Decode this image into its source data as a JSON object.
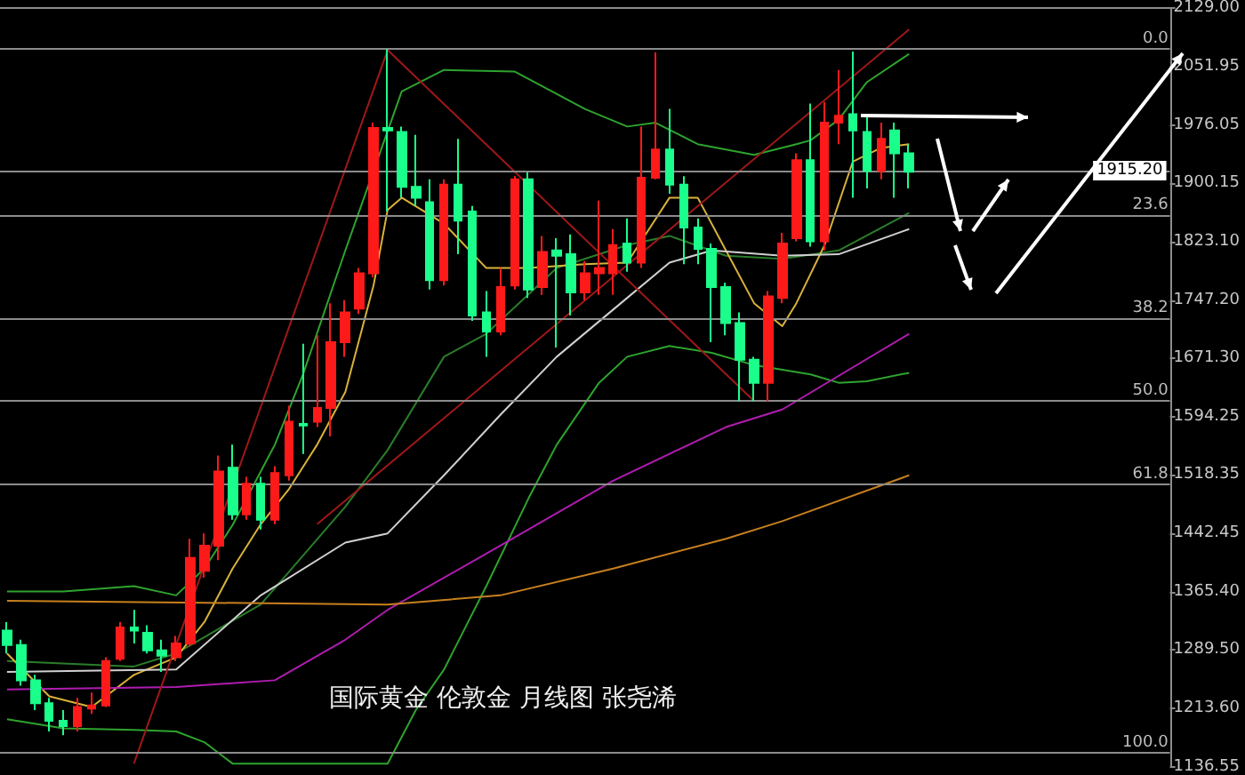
{
  "chart_data": {
    "type": "candlestick",
    "annotations": [
      "国际黄金 伦敦金 月线图 张尧浠",
      {
        "text": "0.0",
        "y": 2075
      },
      {
        "text": "23.6",
        "y": 1858
      },
      {
        "text": "38.2",
        "y": 1724
      },
      {
        "text": "50.0",
        "y": 1615
      },
      {
        "text": "61.8",
        "y": 1506
      },
      {
        "text": "100.0",
        "y": 1155
      }
    ],
    "categories": [
      null,
      null,
      null,
      null,
      null,
      null,
      null,
      null,
      null,
      null,
      null,
      null,
      null,
      null,
      null,
      null,
      null,
      null,
      null,
      null,
      null,
      null,
      null,
      null,
      null,
      null,
      null,
      null,
      null,
      null,
      null,
      null,
      null,
      null,
      null,
      null,
      null,
      null,
      null,
      null,
      null,
      null,
      null,
      null,
      null,
      null,
      null,
      null,
      null,
      null,
      null,
      null,
      null,
      null,
      null,
      null,
      null,
      null,
      null,
      null,
      null,
      null,
      null,
      null,
      null,
      null,
      null,
      null,
      null,
      null,
      null,
      null,
      null,
      null,
      null,
      null,
      null,
      null,
      null,
      null,
      null,
      null,
      null
    ],
    "ohlc": [
      [
        1315,
        1326,
        1285,
        1296
      ],
      [
        1296,
        1303,
        1243,
        1250
      ],
      [
        1250,
        1257,
        1211,
        1220
      ],
      [
        1220,
        1227,
        1183,
        1197
      ],
      [
        1197,
        1211,
        1178,
        1190
      ],
      [
        1190,
        1227,
        1183,
        1215
      ],
      [
        1213,
        1234,
        1206,
        1217
      ],
      [
        1217,
        1280,
        1215,
        1275
      ],
      [
        1278,
        1326,
        1275,
        1319
      ],
      [
        1319,
        1342,
        1298,
        1315
      ],
      [
        1312,
        1322,
        1285,
        1289
      ],
      [
        1289,
        1303,
        1261,
        1282
      ],
      [
        1280,
        1308,
        1275,
        1298
      ],
      [
        1298,
        1435,
        1294,
        1410
      ],
      [
        1393,
        1442,
        1384,
        1426
      ],
      [
        1426,
        1544,
        1407,
        1523
      ],
      [
        1528,
        1558,
        1460,
        1467
      ],
      [
        1467,
        1516,
        1460,
        1507
      ],
      [
        1507,
        1516,
        1447,
        1460
      ],
      [
        1460,
        1530,
        1454,
        1521
      ],
      [
        1518,
        1609,
        1511,
        1588
      ],
      [
        1585,
        1690,
        1546,
        1583
      ],
      [
        1588,
        1701,
        1581,
        1606
      ],
      [
        1606,
        1743,
        1569,
        1692
      ],
      [
        1692,
        1747,
        1673,
        1731
      ],
      [
        1736,
        1789,
        1729,
        1782
      ],
      [
        1782,
        1979,
        1777,
        1972
      ],
      [
        1972,
        2075,
        1863,
        1969
      ],
      [
        1967,
        1974,
        1881,
        1895
      ],
      [
        1895,
        1963,
        1870,
        1881
      ],
      [
        1875,
        1905,
        1761,
        1773
      ],
      [
        1773,
        1905,
        1766,
        1898
      ],
      [
        1898,
        1958,
        1807,
        1851
      ],
      [
        1863,
        1870,
        1720,
        1727
      ],
      [
        1731,
        1759,
        1673,
        1706
      ],
      [
        1706,
        1789,
        1701,
        1764
      ],
      [
        1766,
        1909,
        1761,
        1905
      ],
      [
        1905,
        1914,
        1750,
        1761
      ],
      [
        1764,
        1831,
        1754,
        1810
      ],
      [
        1812,
        1828,
        1685,
        1805
      ],
      [
        1807,
        1833,
        1727,
        1757
      ],
      [
        1757,
        1798,
        1747,
        1782
      ],
      [
        1782,
        1877,
        1754,
        1789
      ],
      [
        1782,
        1840,
        1754,
        1819
      ],
      [
        1821,
        1854,
        1784,
        1796
      ],
      [
        1796,
        1974,
        1789,
        1907
      ],
      [
        1907,
        2071,
        1905,
        1944
      ],
      [
        1944,
        1997,
        1886,
        1898
      ],
      [
        1898,
        1909,
        1794,
        1842
      ],
      [
        1842,
        1854,
        1794,
        1814
      ],
      [
        1814,
        1821,
        1692,
        1764
      ],
      [
        1764,
        1770,
        1701,
        1717
      ],
      [
        1717,
        1731,
        1615,
        1669
      ],
      [
        1669,
        1673,
        1615,
        1639
      ],
      [
        1639,
        1759,
        1615,
        1752
      ],
      [
        1750,
        1835,
        1743,
        1821
      ],
      [
        1828,
        1939,
        1824,
        1930
      ],
      [
        1930,
        2004,
        1817,
        1824
      ],
      [
        1824,
        2006,
        1812,
        1979
      ],
      [
        1979,
        2048,
        1951,
        1988
      ],
      [
        1990,
        2072,
        1881,
        1969
      ],
      [
        1967,
        1986,
        1893,
        1916
      ],
      [
        1916,
        1979,
        1905,
        1958
      ],
      [
        1969,
        1979,
        1881,
        1939
      ],
      [
        1939,
        1951,
        1893,
        1915
      ],
      null,
      null,
      null,
      null,
      null,
      null,
      null,
      null,
      null,
      null,
      null,
      null,
      null,
      null,
      null,
      null,
      null,
      null
    ],
    "marker": "none",
    "series": [
      {
        "type": "line",
        "color": "#2ea32e",
        "values": [
          1366,
          null,
          null,
          null,
          1366,
          null,
          null,
          null,
          null,
          1373,
          null,
          null,
          1361,
          null,
          1396,
          null,
          1453,
          null,
          null,
          1558,
          null,
          1650,
          null,
          null,
          1812,
          null,
          null,
          null,
          2020,
          null,
          null,
          2048,
          null,
          null,
          null,
          null,
          2046,
          null,
          null,
          null,
          null,
          1997,
          null,
          null,
          1974,
          null,
          1979,
          null,
          null,
          1951,
          null,
          null,
          null,
          1937,
          null,
          null,
          1951,
          1956,
          null,
          1983,
          null,
          2032,
          null,
          null,
          2069,
          null,
          null,
          null,
          null,
          null,
          null,
          null,
          null,
          null,
          null,
          null,
          null,
          null,
          null,
          null,
          null,
          null,
          null
        ]
      },
      {
        "type": "line",
        "color": "#2ea32e",
        "values": [
          1199,
          null,
          null,
          null,
          1187,
          null,
          null,
          null,
          null,
          1185,
          null,
          null,
          1183,
          null,
          1169,
          null,
          1141,
          null,
          null,
          null,
          null,
          null,
          null,
          null,
          null,
          null,
          null,
          1141,
          null,
          1211,
          null,
          1264,
          null,
          null,
          1373,
          null,
          null,
          1488,
          null,
          1558,
          null,
          null,
          1639,
          null,
          1673,
          null,
          null,
          1687,
          null,
          null,
          1678,
          null,
          null,
          1662,
          null,
          null,
          null,
          1650,
          null,
          1639,
          null,
          1641,
          null,
          null,
          1652,
          null,
          null,
          null,
          null,
          null,
          null,
          null,
          null,
          null,
          null,
          null,
          null,
          null,
          null,
          null,
          null,
          null,
          null
        ]
      },
      {
        "type": "line",
        "color": "#2a7d2a",
        "values": [
          1275,
          null,
          null,
          null,
          null,
          null,
          null,
          null,
          null,
          1268,
          null,
          null,
          1285,
          null,
          null,
          null,
          null,
          null,
          1349,
          null,
          null,
          null,
          null,
          null,
          1477,
          null,
          null,
          1551,
          null,
          null,
          null,
          1673,
          null,
          null,
          1703,
          null,
          null,
          null,
          null,
          1789,
          null,
          null,
          null,
          null,
          1819,
          null,
          null,
          1831,
          null,
          null,
          null,
          1805,
          null,
          null,
          null,
          1801,
          null,
          null,
          null,
          1812,
          null,
          null,
          null,
          null,
          1861,
          null,
          null,
          null,
          null,
          null,
          null,
          null,
          null,
          null,
          null,
          null,
          null,
          null,
          null,
          null,
          null,
          null,
          null
        ]
      },
      {
        "type": "line",
        "color": "#d9b23a",
        "values": [
          1285,
          null,
          null,
          1229,
          null,
          null,
          1215,
          null,
          null,
          1257,
          null,
          null,
          1280,
          null,
          1326,
          null,
          1396,
          null,
          1454,
          null,
          1500,
          null,
          1558,
          null,
          1627,
          null,
          1766,
          1865,
          1881,
          null,
          null,
          1847,
          null,
          null,
          1789,
          null,
          null,
          1789,
          null,
          null,
          null,
          1794,
          null,
          null,
          1796,
          null,
          null,
          1881,
          null,
          1881,
          null,
          1812,
          null,
          1743,
          null,
          1713,
          1743,
          null,
          1819,
          null,
          1928,
          null,
          1946,
          null,
          1951,
          null,
          null,
          null,
          null,
          null,
          null,
          null,
          null,
          null,
          null,
          null,
          null,
          null,
          null,
          null,
          null,
          null,
          null
        ]
      },
      {
        "type": "line",
        "color": "#d0d0d0",
        "values": [
          1261,
          null,
          null,
          null,
          null,
          null,
          null,
          null,
          null,
          null,
          null,
          null,
          1264,
          null,
          null,
          null,
          null,
          null,
          1361,
          null,
          null,
          null,
          null,
          null,
          1430,
          null,
          null,
          1442,
          null,
          null,
          null,
          1518,
          null,
          null,
          null,
          1597,
          null,
          null,
          null,
          1673,
          null,
          null,
          null,
          null,
          1750,
          null,
          null,
          1796,
          null,
          null,
          1812,
          null,
          null,
          null,
          null,
          1805,
          null,
          null,
          null,
          1807,
          null,
          null,
          null,
          null,
          1840,
          null,
          null,
          null,
          null,
          null,
          null,
          null,
          null,
          null,
          null,
          null,
          null,
          null,
          null,
          null,
          null,
          null,
          null
        ]
      },
      {
        "type": "line",
        "color": "#b01cb0",
        "values": [
          1238,
          null,
          null,
          null,
          null,
          null,
          null,
          null,
          null,
          null,
          null,
          null,
          1241,
          null,
          null,
          null,
          null,
          null,
          null,
          1250,
          null,
          null,
          null,
          null,
          1303,
          null,
          null,
          1342,
          null,
          null,
          null,
          null,
          null,
          null,
          null,
          1426,
          null,
          null,
          null,
          null,
          null,
          null,
          null,
          1511,
          null,
          null,
          null,
          null,
          null,
          null,
          null,
          1581,
          null,
          null,
          null,
          1604,
          null,
          null,
          null,
          null,
          null,
          null,
          null,
          null,
          1703,
          null,
          null,
          null,
          null,
          null,
          null,
          null,
          null,
          null,
          null,
          null,
          null,
          null,
          null,
          null,
          null,
          null,
          null
        ]
      },
      {
        "type": "line",
        "color": "#c8801e",
        "values": [
          1354,
          null,
          null,
          null,
          null,
          null,
          null,
          null,
          null,
          null,
          null,
          null,
          null,
          null,
          null,
          null,
          null,
          null,
          null,
          null,
          null,
          null,
          null,
          null,
          null,
          null,
          null,
          1349,
          null,
          null,
          null,
          null,
          null,
          null,
          null,
          1361,
          null,
          null,
          null,
          null,
          null,
          null,
          null,
          1396,
          null,
          null,
          null,
          null,
          null,
          null,
          null,
          1435,
          null,
          null,
          null,
          1458,
          null,
          null,
          null,
          null,
          null,
          null,
          null,
          null,
          1518,
          null,
          null,
          null,
          null,
          null,
          null,
          null,
          null,
          null,
          null,
          null,
          null,
          null,
          null,
          null,
          null,
          null,
          null
        ]
      },
      {
        "type": "line",
        "color": "#a01818",
        "values": [
          null,
          null,
          null,
          null,
          null,
          null,
          null,
          null,
          null,
          1141,
          null,
          null,
          null,
          null,
          null,
          null,
          null,
          null,
          null,
          null,
          null,
          null,
          null,
          null,
          null,
          null,
          null,
          2074,
          null,
          null,
          null,
          null,
          null,
          null,
          null,
          null,
          null,
          null,
          null,
          null,
          null,
          null,
          null,
          null,
          null,
          null,
          null,
          null,
          null,
          null,
          null,
          null,
          null,
          null,
          null,
          null,
          null,
          null,
          null,
          null,
          null,
          null,
          null,
          null,
          null,
          null,
          null,
          null,
          null,
          null,
          null,
          null,
          null,
          null,
          null,
          null,
          null,
          null,
          null,
          null,
          null,
          null,
          null
        ]
      },
      {
        "type": "line",
        "color": "#a01818",
        "values": [
          null,
          null,
          null,
          null,
          null,
          null,
          null,
          null,
          null,
          null,
          null,
          null,
          null,
          null,
          null,
          null,
          null,
          null,
          null,
          null,
          null,
          null,
          null,
          null,
          null,
          null,
          null,
          2074,
          null,
          null,
          null,
          null,
          null,
          null,
          null,
          null,
          null,
          null,
          null,
          null,
          null,
          null,
          null,
          null,
          null,
          null,
          null,
          null,
          null,
          null,
          null,
          null,
          null,
          1615,
          null,
          null,
          null,
          null,
          null,
          null,
          null,
          null,
          null,
          null,
          null,
          null,
          null,
          null,
          null,
          null,
          null,
          null,
          null,
          null,
          null,
          null,
          null,
          null,
          null,
          null,
          null,
          null,
          null
        ]
      },
      {
        "type": "line",
        "color": "#a01818",
        "values": [
          null,
          null,
          null,
          null,
          null,
          null,
          null,
          null,
          null,
          null,
          null,
          null,
          null,
          null,
          null,
          null,
          null,
          null,
          null,
          null,
          null,
          null,
          1454,
          null,
          null,
          null,
          null,
          null,
          null,
          null,
          null,
          null,
          null,
          null,
          null,
          null,
          null,
          null,
          null,
          null,
          null,
          null,
          null,
          null,
          null,
          null,
          null,
          null,
          null,
          null,
          null,
          null,
          null,
          null,
          null,
          null,
          null,
          null,
          null,
          null,
          null,
          null,
          null,
          null,
          2101,
          null,
          null,
          null,
          null,
          null,
          null,
          null,
          null,
          null,
          null,
          null,
          null,
          null,
          null,
          null,
          null,
          null,
          null
        ]
      }
    ],
    "ylim": [
      1136.55,
      2129
    ],
    "yticks": [
      {
        "value": 2129,
        "label": "2129.00"
      },
      2051.95,
      1976.05,
      1900.15,
      {
        "value": 1823.1,
        "label": "1823.10"
      },
      {
        "value": 1747.2,
        "label": "1747.20"
      },
      {
        "value": 1671.3,
        "label": "1671.30"
      },
      1594.25,
      1518.35,
      1442.45,
      {
        "value": 1365.4,
        "label": "1365.40"
      },
      {
        "value": 1289.5,
        "label": "1289.50"
      },
      {
        "value": 1213.6,
        "label": "1213.60"
      },
      1136.55
    ],
    "tick_labels": "y",
    "ref_lines": [
      {
        "axis": "y",
        "value": 2075,
        "color": "#8c8c8c"
      },
      {
        "axis": "y",
        "value": 1858,
        "color": "#8c8c8c"
      },
      {
        "axis": "y",
        "value": 1724,
        "color": "#8c8c8c"
      },
      {
        "axis": "y",
        "value": 1615,
        "color": "#8c8c8c"
      },
      {
        "axis": "y",
        "value": 1506,
        "color": "#8c8c8c"
      },
      {
        "axis": "y",
        "value": 1155,
        "color": "#8c8c8c"
      },
      {
        "axis": "y",
        "value": 1915.2,
        "label": "1915.20",
        "color": "#8c8c8c"
      }
    ]
  }
}
